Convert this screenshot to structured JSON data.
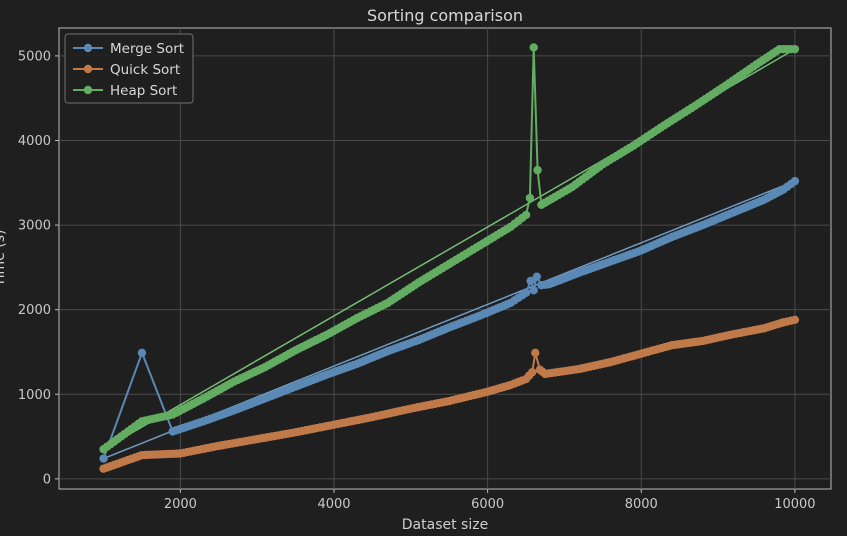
{
  "chart_data": {
    "type": "line",
    "title": "Sorting comparison",
    "xlabel": "Dataset size",
    "ylabel": "Time (s)",
    "xlim": [
      420,
      10470
    ],
    "ylim": [
      -120,
      5330
    ],
    "x_ticks": [
      2000,
      4000,
      6000,
      8000,
      10000
    ],
    "y_ticks": [
      0,
      1000,
      2000,
      3000,
      4000,
      5000
    ],
    "grid": true,
    "legend_position": "top-left",
    "series": [
      {
        "name": "Merge Sort",
        "color": "#5b89b5",
        "x": [
          1000,
          1500,
          1900,
          2300,
          2700,
          3100,
          3500,
          3900,
          4300,
          4700,
          5100,
          5500,
          5900,
          6300,
          6500,
          6560,
          6600,
          6640,
          6700,
          6800,
          7200,
          7600,
          8000,
          8400,
          8800,
          9200,
          9600,
          9850,
          10000
        ],
        "values": [
          240,
          1490,
          560,
          680,
          810,
          950,
          1090,
          1230,
          1360,
          1510,
          1640,
          1790,
          1930,
          2080,
          2200,
          2340,
          2230,
          2390,
          2290,
          2300,
          2440,
          2570,
          2700,
          2860,
          3000,
          3150,
          3300,
          3420,
          3520
        ]
      },
      {
        "name": "Quick Sort",
        "color": "#c07a4a",
        "x": [
          1000,
          1500,
          2000,
          2500,
          3000,
          3500,
          4000,
          4500,
          5000,
          5500,
          6000,
          6300,
          6500,
          6580,
          6620,
          6680,
          6750,
          7200,
          7600,
          8000,
          8400,
          8800,
          9200,
          9600,
          9850,
          10000
        ],
        "values": [
          120,
          280,
          300,
          390,
          470,
          550,
          640,
          730,
          830,
          920,
          1030,
          1110,
          1180,
          1260,
          1490,
          1290,
          1240,
          1300,
          1380,
          1480,
          1580,
          1630,
          1710,
          1780,
          1850,
          1880
        ]
      },
      {
        "name": "Heap Sort",
        "color": "#63ad63",
        "x": [
          1000,
          1500,
          1900,
          2300,
          2700,
          3100,
          3500,
          3900,
          4300,
          4700,
          5100,
          5500,
          5900,
          6300,
          6500,
          6550,
          6600,
          6650,
          6700,
          7100,
          7500,
          7900,
          8300,
          8700,
          9100,
          9500,
          9800,
          10000
        ],
        "values": [
          350,
          680,
          760,
          950,
          1150,
          1320,
          1520,
          1700,
          1900,
          2080,
          2320,
          2540,
          2760,
          2980,
          3120,
          3320,
          5100,
          3650,
          3240,
          3450,
          3720,
          3940,
          4180,
          4410,
          4650,
          4900,
          5080,
          5080
        ]
      }
    ],
    "trend_lines": [
      {
        "name": "Merge Sort",
        "color": "#6f9bc2",
        "x": [
          1000,
          10000
        ],
        "values": [
          240,
          3520
        ]
      },
      {
        "name": "Heap Sort",
        "color": "#75bd75",
        "x": [
          1000,
          10000
        ],
        "values": [
          350,
          5080
        ]
      }
    ]
  }
}
